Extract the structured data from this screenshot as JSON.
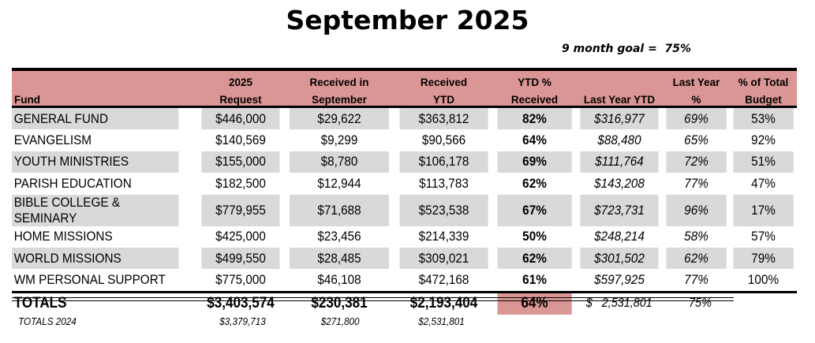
{
  "title": "September 2025",
  "goal": "9 month goal =  75%",
  "headers": [
    [
      "",
      "Fund"
    ],
    [
      "2025",
      "Request"
    ],
    [
      "Received in",
      "September"
    ],
    [
      "Received",
      "YTD"
    ],
    [
      "YTD %",
      "Received"
    ],
    [
      "",
      "Last Year YTD"
    ],
    [
      "Last Year",
      "%"
    ],
    [
      "% of Total",
      "Budget"
    ]
  ],
  "rows": [
    [
      "GENERAL FUND",
      "$446,000",
      "$29,622",
      "$363,812",
      "82%",
      "$316,977",
      "69%",
      "53%"
    ],
    [
      "EVANGELISM",
      "$140,569",
      "$9,299",
      "$90,566",
      "64%",
      "$88,480",
      "65%",
      "92%"
    ],
    [
      "YOUTH MINISTRIES",
      "$155,000",
      "$8,780",
      "$106,178",
      "69%",
      "$111,764",
      "72%",
      "51%"
    ],
    [
      "PARISH EDUCATION",
      "$182,500",
      "$12,944",
      "$113,783",
      "62%",
      "$143,208",
      "77%",
      "47%"
    ],
    [
      "BIBLE COLLEGE & SEMINARY",
      "$779,955",
      "$71,688",
      "$523,538",
      "67%",
      "$723,731",
      "96%",
      "17%"
    ],
    [
      "HOME MISSIONS",
      "$425,000",
      "$23,456",
      "$214,339",
      "50%",
      "$248,214",
      "58%",
      "57%"
    ],
    [
      "WORLD MISSIONS",
      "$499,550",
      "$28,485",
      "$309,021",
      "62%",
      "$301,502",
      "62%",
      "79%"
    ],
    [
      "WM PERSONAL SUPPORT",
      "$775,000",
      "$46,108",
      "$472,168",
      "61%",
      "$597,925",
      "77%",
      "100%"
    ]
  ],
  "totals": {
    "label": "TOTALS",
    "request": "$3,403,574",
    "september": "$230,381",
    "ytd": "$2,193,404",
    "ytd_pct": "64%",
    "last_year_ytd": "$   2,531,801",
    "last_year_pct": "75%"
  },
  "totals_2024": {
    "label": "TOTALS 2024",
    "request": "$3,379,713",
    "september": "$271,800",
    "ytd": "$2,531,801"
  },
  "colors": {
    "header": "#da9694",
    "stripe": "#d9d9d9"
  }
}
